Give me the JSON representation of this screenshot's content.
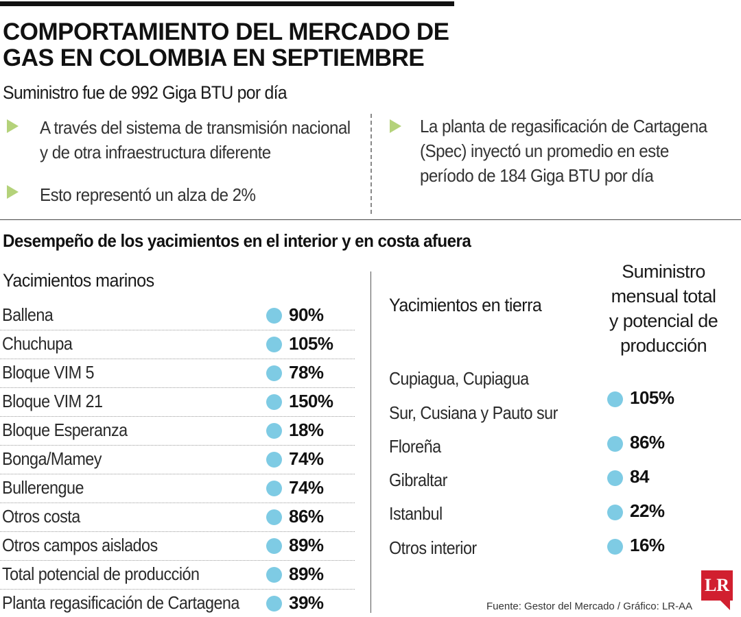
{
  "header": {
    "title_line1": "COMPORTAMIENTO DEL MERCADO DE",
    "title_line2": "GAS EN COLOMBIA EN SEPTIEMBRE",
    "subtitle": "Suministro fue de 992 Giga BTU por día"
  },
  "bullets_left": [
    {
      "line1": "A través del sistema de transmisión nacional",
      "line2": "y de otra infraestructura diferente"
    },
    {
      "line1": "Esto representó un alza de 2%"
    }
  ],
  "bullets_right": [
    {
      "line1": "La planta de regasificación de Cartagena",
      "line2": "(Spec) inyectó un promedio en este",
      "line3": "período de 184 Giga BTU por día"
    }
  ],
  "section": {
    "title": "Desempeño de los yacimientos en el interior y en costa afuera",
    "marine_header": "Yacimientos marinos",
    "land_header": "Yacimientos en tierra",
    "supply_header": [
      "Suministro",
      "mensual total",
      "y potencial de",
      "producción"
    ]
  },
  "source": "Fuente: Gestor del Mercado / Gráfico: LR-AA",
  "logo": "LR",
  "colors": {
    "dot": "#7ecbe4",
    "bullet_triangle": "#b4d27a",
    "logo": "#d11f2f"
  },
  "chart_data": [
    {
      "type": "table",
      "title": "Yacimientos marinos",
      "categories": [
        "Ballena",
        "Chuchupa",
        "Bloque VIM 5",
        "Bloque VIM 21",
        "Bloque Esperanza",
        "Bonga/Mamey",
        "Bullerengue",
        "Otros costa",
        "Otros campos aislados",
        "Total potencial de producción",
        "Planta regasificación de Cartagena"
      ],
      "labels": [
        "90%",
        "105%",
        "78%",
        "150%",
        "18%",
        "74%",
        "74%",
        "86%",
        "89%",
        "89%",
        "39%"
      ],
      "values": [
        90,
        105,
        78,
        150,
        18,
        74,
        74,
        86,
        89,
        89,
        39
      ]
    },
    {
      "type": "table",
      "title": "Yacimientos en tierra",
      "categories": [
        [
          "Cupiagua, Cupiagua",
          "Sur, Cusiana y Pauto sur"
        ],
        "Floreña",
        "Gibraltar",
        "Istanbul",
        "Otros interior"
      ],
      "labels": [
        "105%",
        "86%",
        "84",
        "22%",
        "16%"
      ],
      "values": [
        105,
        86,
        84,
        22,
        16
      ]
    }
  ]
}
